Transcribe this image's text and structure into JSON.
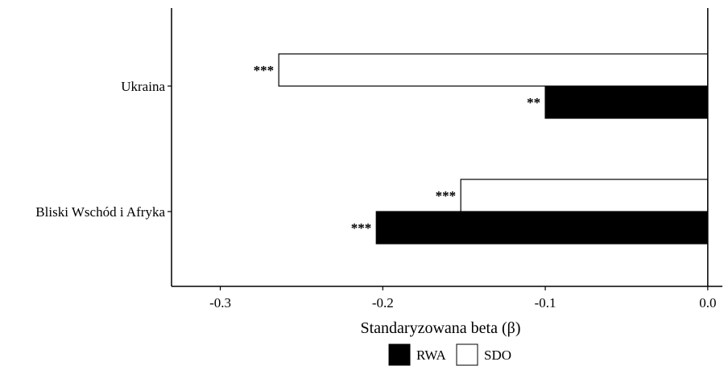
{
  "chart_data": {
    "type": "bar",
    "orientation": "horizontal",
    "categories": [
      "Ukraina",
      "Bliski Wschód i Afryka"
    ],
    "series": [
      {
        "name": "RWA",
        "color": "#000000",
        "values": [
          -0.1,
          -0.204
        ],
        "significance": [
          "**",
          "***"
        ]
      },
      {
        "name": "SDO",
        "color": "#ffffff",
        "values": [
          -0.264,
          -0.152
        ],
        "significance": [
          "***",
          "***"
        ]
      }
    ],
    "xlabel": "Standaryzowana beta (β)",
    "xlim": [
      -0.33,
      0.009
    ],
    "xticks": [
      -0.3,
      -0.2,
      -0.1,
      0.0
    ],
    "xtick_labels": [
      "-0.3",
      "-0.2",
      "-0.1",
      "0.0"
    ],
    "legend": {
      "position": "bottom",
      "entries": [
        "RWA",
        "SDO"
      ]
    },
    "grid": false
  }
}
